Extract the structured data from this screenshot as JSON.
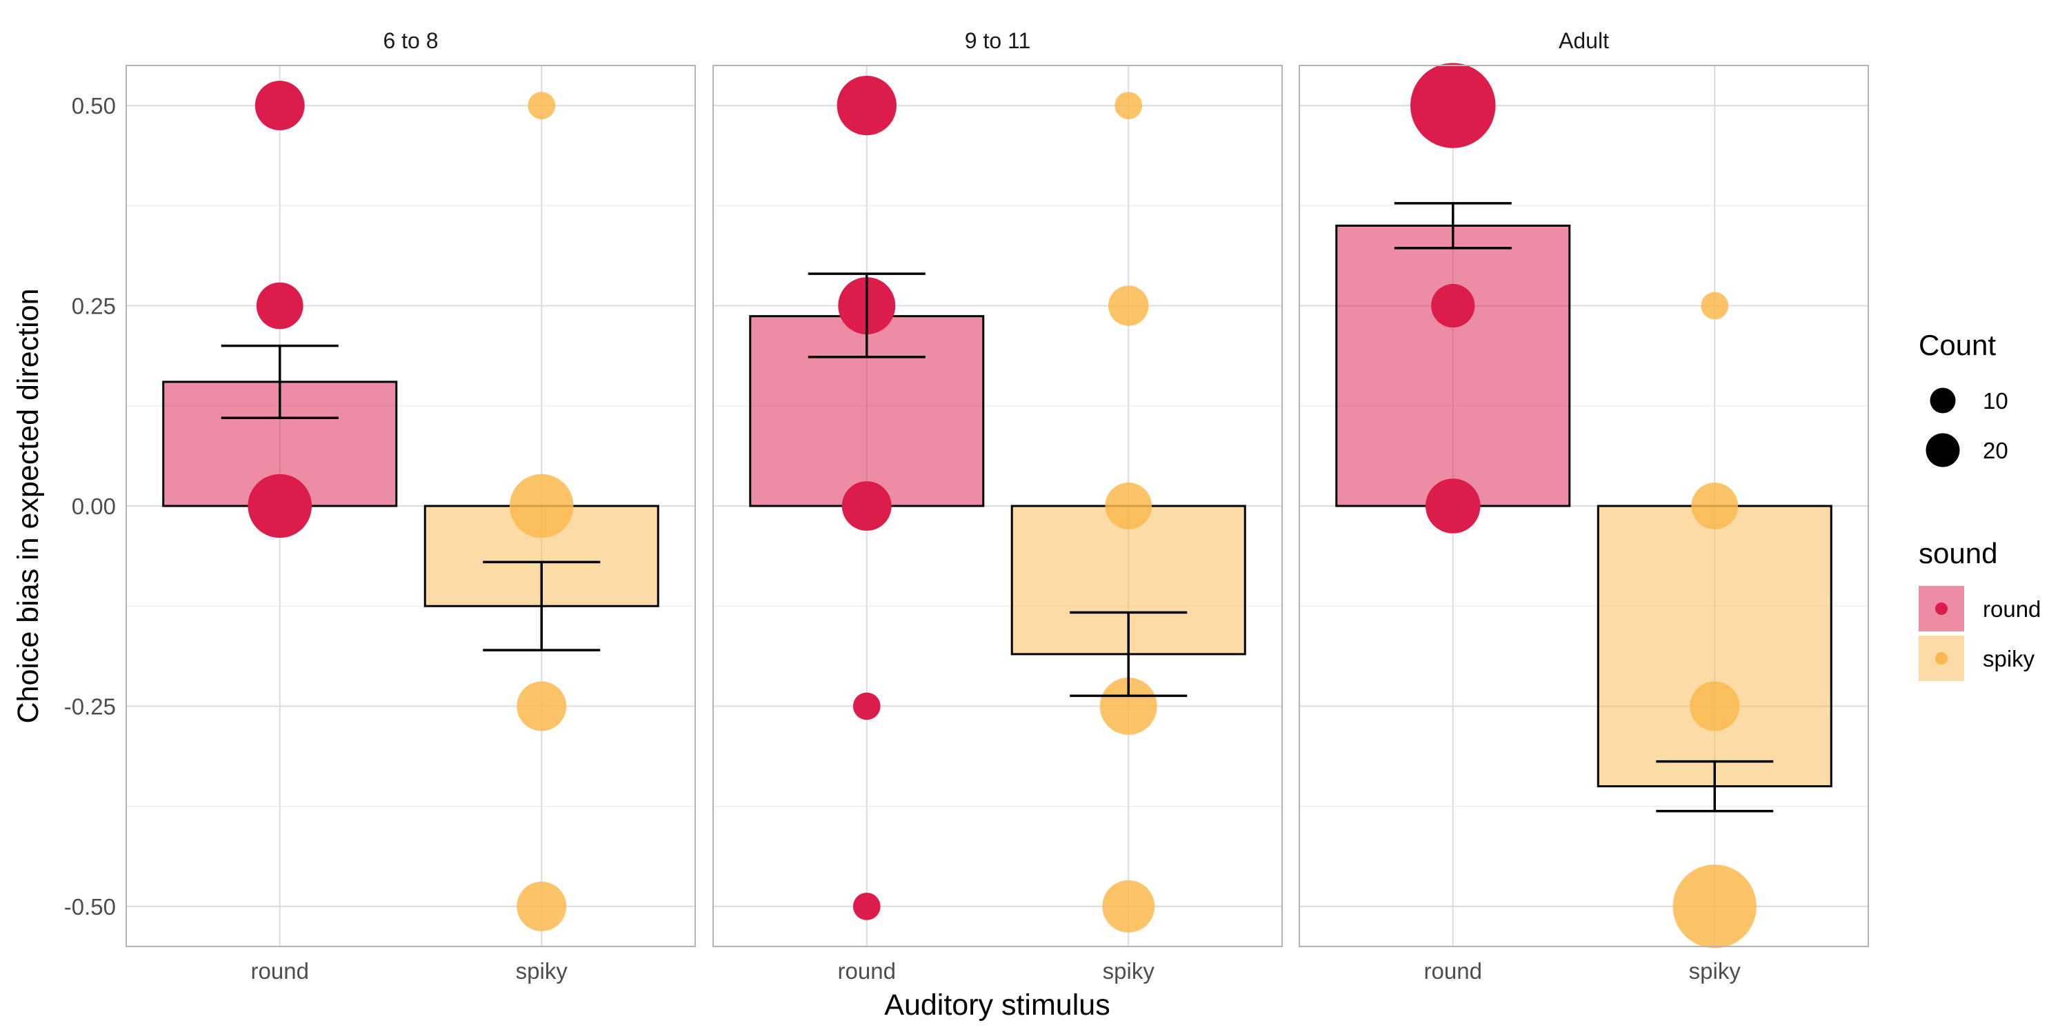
{
  "chart_data": {
    "type": "bar",
    "xlabel": "Auditory stimulus",
    "ylabel": "Choice bias in expected direction",
    "ylim": [
      -0.55,
      0.55
    ],
    "yticks": [
      "0.50",
      "0.25",
      "0.00",
      "-0.25",
      "-0.50"
    ],
    "categories": [
      "round",
      "spiky"
    ],
    "colors": {
      "round": "#dc1c4b",
      "spiky": "#fcb84e"
    },
    "panels": [
      {
        "title": "6 to 8",
        "bars": [
          {
            "sound": "round",
            "mean": 0.155,
            "se_low": 0.11,
            "se_high": 0.2
          },
          {
            "sound": "spiky",
            "mean": -0.125,
            "se_low": -0.18,
            "se_high": -0.07
          }
        ],
        "points": [
          {
            "sound": "round",
            "y": 0.5,
            "count": 8
          },
          {
            "sound": "round",
            "y": 0.25,
            "count": 7
          },
          {
            "sound": "round",
            "y": 0.0,
            "count": 14
          },
          {
            "sound": "spiky",
            "y": 0.5,
            "count": 2
          },
          {
            "sound": "spiky",
            "y": 0.0,
            "count": 14
          },
          {
            "sound": "spiky",
            "y": -0.25,
            "count": 8
          },
          {
            "sound": "spiky",
            "y": -0.5,
            "count": 8
          }
        ]
      },
      {
        "title": "9 to 11",
        "bars": [
          {
            "sound": "round",
            "mean": 0.237,
            "se_low": 0.186,
            "se_high": 0.29
          },
          {
            "sound": "spiky",
            "mean": -0.185,
            "se_low": -0.237,
            "se_high": -0.133
          }
        ],
        "points": [
          {
            "sound": "round",
            "y": 0.5,
            "count": 12
          },
          {
            "sound": "round",
            "y": 0.25,
            "count": 11
          },
          {
            "sound": "round",
            "y": 0.0,
            "count": 8
          },
          {
            "sound": "round",
            "y": -0.25,
            "count": 2
          },
          {
            "sound": "round",
            "y": -0.5,
            "count": 2
          },
          {
            "sound": "spiky",
            "y": 0.5,
            "count": 2
          },
          {
            "sound": "spiky",
            "y": 0.25,
            "count": 5
          },
          {
            "sound": "spiky",
            "y": 0.0,
            "count": 7
          },
          {
            "sound": "spiky",
            "y": -0.25,
            "count": 11
          },
          {
            "sound": "spiky",
            "y": -0.5,
            "count": 9
          }
        ]
      },
      {
        "title": "Adult",
        "bars": [
          {
            "sound": "round",
            "mean": 0.35,
            "se_low": 0.322,
            "se_high": 0.378
          },
          {
            "sound": "spiky",
            "mean": -0.35,
            "se_low": -0.381,
            "se_high": -0.319
          }
        ],
        "points": [
          {
            "sound": "round",
            "y": 0.5,
            "count": 26
          },
          {
            "sound": "round",
            "y": 0.25,
            "count": 6
          },
          {
            "sound": "round",
            "y": 0.0,
            "count": 10
          },
          {
            "sound": "spiky",
            "y": 0.25,
            "count": 2
          },
          {
            "sound": "spiky",
            "y": 0.0,
            "count": 7
          },
          {
            "sound": "spiky",
            "y": -0.25,
            "count": 8
          },
          {
            "sound": "spiky",
            "y": -0.5,
            "count": 25
          }
        ]
      }
    ],
    "legend": {
      "position": "right",
      "size_title": "Count",
      "size_entries": [
        {
          "label": "10",
          "count": 10
        },
        {
          "label": "20",
          "count": 20
        }
      ],
      "fill_title": "sound",
      "fill_entries": [
        {
          "label": "round",
          "sound": "round"
        },
        {
          "label": "spiky",
          "sound": "spiky"
        }
      ]
    }
  }
}
